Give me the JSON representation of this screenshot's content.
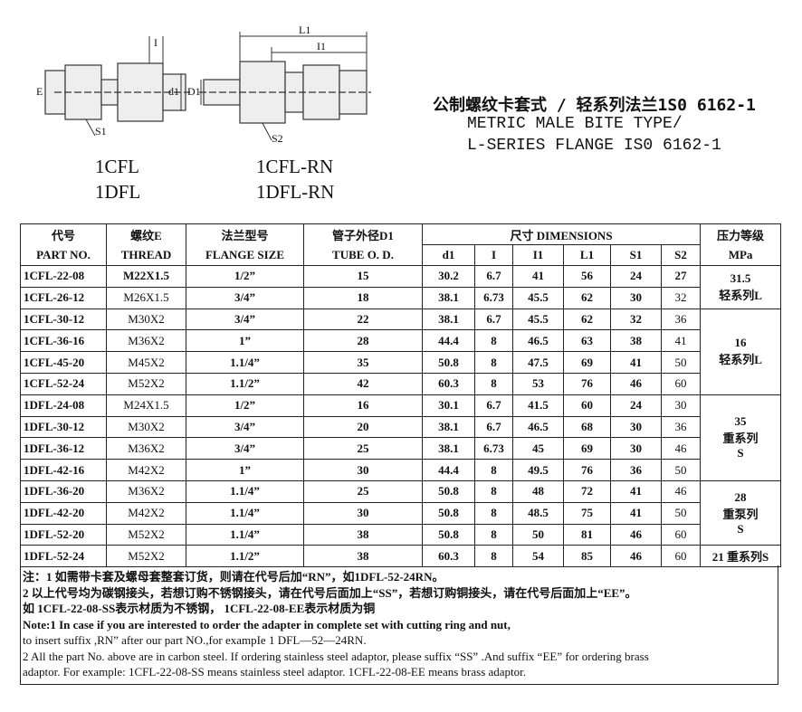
{
  "drawing_labels": [
    "I",
    "E",
    "d1",
    "S1",
    "L1",
    "I1",
    "D1",
    "S2"
  ],
  "products": [
    "1CFL",
    "1DFL",
    "1CFL-RN",
    "1DFL-RN"
  ],
  "title": [
    "公制螺纹卡套式 / 轻系列法兰1S0 6162-1",
    "METRIC MALE BITE TYPE/",
    "L-SERIES FLANGE IS0 6162-1"
  ],
  "table": {
    "header_top": [
      "代号",
      "螺纹E",
      "法兰型号",
      "管子外径D1",
      "尺寸 DIMENSIONS",
      "压力等级"
    ],
    "header_bottom": [
      "PART NO.",
      "THREAD",
      "FLANGE SIZE",
      "TUBE O. D.",
      "d1",
      "I",
      "I1",
      "L1",
      "S1",
      "S2",
      "MPa"
    ],
    "rows": [
      [
        "1CFL-22-08",
        "M22X1.5",
        "1/2”",
        "15",
        "30.2",
        "6.7",
        "41",
        "56",
        "24",
        "27"
      ],
      [
        "1CFL-26-12",
        "M26X1.5",
        "3/4”",
        "18",
        "38.1",
        "6.73",
        "45.5",
        "62",
        "30",
        "32"
      ],
      [
        "1CFL-30-12",
        "M30X2",
        "3/4”",
        "22",
        "38.1",
        "6.7",
        "45.5",
        "62",
        "32",
        "36"
      ],
      [
        "1CFL-36-16",
        "M36X2",
        "1”",
        "28",
        "44.4",
        "8",
        "46.5",
        "63",
        "38",
        "41"
      ],
      [
        "1CFL-45-20",
        "M45X2",
        "1.1/4”",
        "35",
        "50.8",
        "8",
        "47.5",
        "69",
        "41",
        "50"
      ],
      [
        "1CFL-52-24",
        "M52X2",
        "1.1/2”",
        "42",
        "60.3",
        "8",
        "53",
        "76",
        "46",
        "60"
      ],
      [
        "1DFL-24-08",
        "M24X1.5",
        "1/2”",
        "16",
        "30.1",
        "6.7",
        "41.5",
        "60",
        "24",
        "30"
      ],
      [
        "1DFL-30-12",
        "M30X2",
        "3/4”",
        "20",
        "38.1",
        "6.7",
        "46.5",
        "68",
        "30",
        "36"
      ],
      [
        "1DFL-36-12",
        "M36X2",
        "3/4”",
        "25",
        "38.1",
        "6.73",
        "45",
        "69",
        "30",
        "46"
      ],
      [
        "1DFL-42-16",
        "M42X2",
        "1”",
        "30",
        "44.4",
        "8",
        "49.5",
        "76",
        "36",
        "50"
      ],
      [
        "1DFL-36-20",
        "M36X2",
        "1.1/4”",
        "25",
        "50.8",
        "8",
        "48",
        "72",
        "41",
        "46"
      ],
      [
        "1DFL-42-20",
        "M42X2",
        "1.1/4”",
        "30",
        "50.8",
        "8",
        "48.5",
        "75",
        "41",
        "50"
      ],
      [
        "1DFL-52-20",
        "M52X2",
        "1.1/4”",
        "38",
        "50.8",
        "8",
        "50",
        "81",
        "46",
        "60"
      ],
      [
        "1DFL-52-24",
        "M52X2",
        "1.1/2”",
        "38",
        "60.3",
        "8",
        "54",
        "85",
        "46",
        "60"
      ]
    ],
    "pressure": [
      [
        "31.5",
        "轻系列L"
      ],
      [
        "16",
        "轻系列L"
      ],
      [
        "35",
        "重系列",
        "S"
      ],
      [
        "28",
        "重泵列",
        "S"
      ],
      [
        "21 重系列S"
      ]
    ]
  },
  "notes": [
    "注：1 如需带卡套及螺母套整套订货，则请在代号后加“RN”，如1DFL-52-24RN。",
    "2 以上代号均为碳钢接头，若想订购不锈钢接头，请在代号后面加上“SS”，若想订购铜接头，请在代号后面加上“EE”。",
    "如 1CFL-22-08-SS表示材质为不锈钢， 1CFL-22-08-EE表示材质为铜",
    "Note:1 In case if you are interested to order the adapter in complete set with cutting ring and nut,",
    "to insert suffix ,RN” after our part NO.,for exampIe 1 DFL—52—24RN.",
    "2 All the part No. above are in carbon steel. If ordering stainless steel adaptor, please suffix “SS” .And suffix “EE” for ordering brass",
    "adaptor. For example: 1CFL-22-08-SS means stainless steel adaptor. 1CFL-22-08-EE means brass adaptor."
  ]
}
